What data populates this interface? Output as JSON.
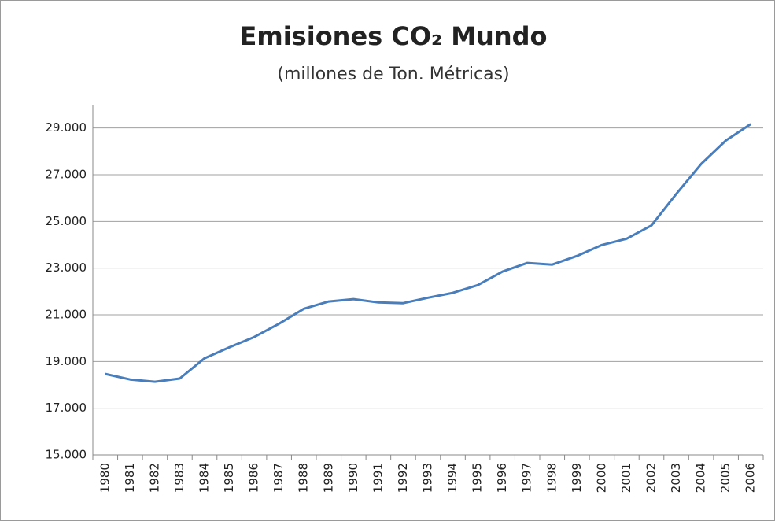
{
  "chart_data": {
    "type": "line",
    "title": "Emisiones CO₂ Mundo",
    "subtitle": "(millones de Ton. Métricas)",
    "categories": [
      "1980",
      "1981",
      "1982",
      "1983",
      "1984",
      "1985",
      "1986",
      "1987",
      "1988",
      "1989",
      "1990",
      "1991",
      "1992",
      "1993",
      "1994",
      "1995",
      "1996",
      "1997",
      "1998",
      "1999",
      "2000",
      "2001",
      "2002",
      "2003",
      "2004",
      "2005",
      "2006"
    ],
    "series": [
      {
        "name": "Emisiones CO₂",
        "color": "#4a7ebb",
        "values": [
          18470,
          18230,
          18130,
          18270,
          19140,
          19610,
          20050,
          20620,
          21260,
          21570,
          21670,
          21530,
          21500,
          21730,
          21940,
          22270,
          22850,
          23220,
          23150,
          23520,
          23990,
          24260,
          24830,
          26180,
          27460,
          28470,
          29170
        ]
      }
    ],
    "ylim": [
      15000,
      30000
    ],
    "yticks": [
      {
        "value": 15000,
        "label": "15.000"
      },
      {
        "value": 17000,
        "label": "17.000"
      },
      {
        "value": 19000,
        "label": "19.000"
      },
      {
        "value": 21000,
        "label": "21.000"
      },
      {
        "value": 23000,
        "label": "23.000"
      },
      {
        "value": 25000,
        "label": "25.000"
      },
      {
        "value": 27000,
        "label": "27.000"
      },
      {
        "value": 29000,
        "label": "29.000"
      }
    ],
    "grid": true
  }
}
